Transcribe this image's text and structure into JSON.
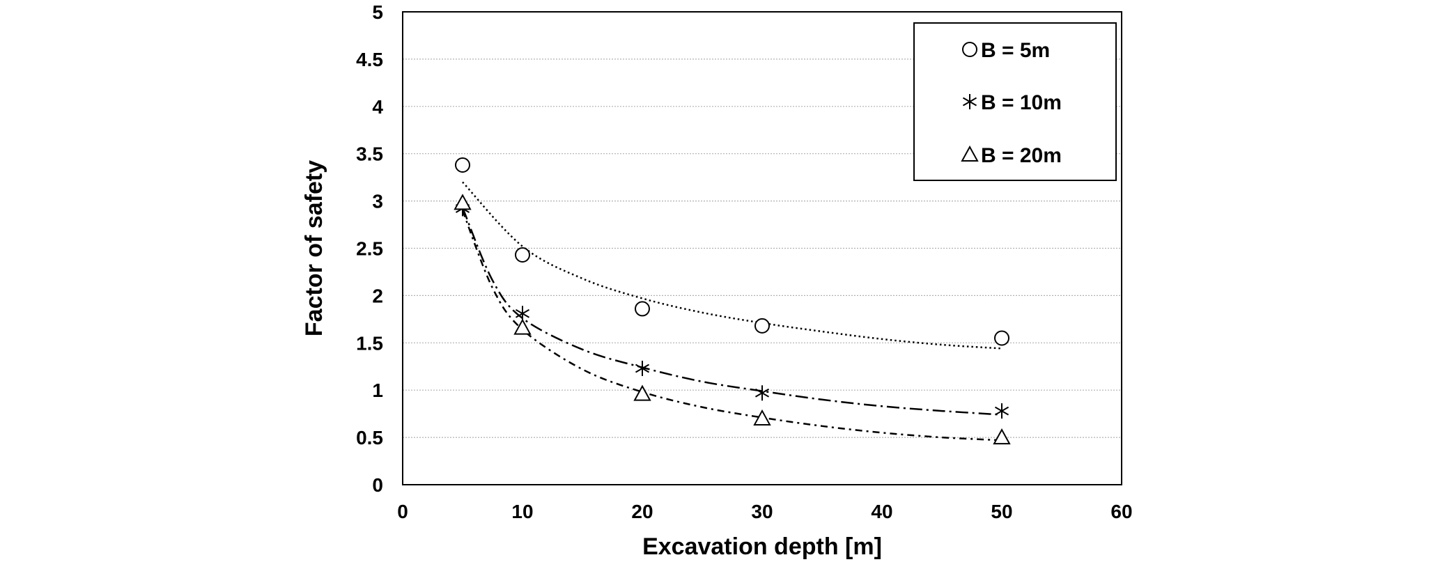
{
  "chart_data": {
    "type": "scatter",
    "title": "",
    "xlabel": "Excavation depth [m]",
    "ylabel": "Factor of safety",
    "xlim": [
      0,
      60
    ],
    "ylim": [
      0,
      5
    ],
    "x_ticks": [
      0,
      10,
      20,
      30,
      40,
      50,
      60
    ],
    "y_ticks": [
      0,
      0.5,
      1,
      1.5,
      2,
      2.5,
      3,
      3.5,
      4,
      4.5,
      5
    ],
    "x_tick_labels": [
      "0",
      "10",
      "20",
      "30",
      "40",
      "50",
      "60"
    ],
    "y_tick_labels": [
      "0",
      "0.5",
      "1",
      "1.5",
      "2",
      "2.5",
      "3",
      "3.5",
      "4",
      "4.5",
      "5"
    ],
    "grid": {
      "horizontal": true,
      "vertical": false
    },
    "legend_position": "top-right",
    "series": [
      {
        "name": "B = 5m",
        "marker": "circle",
        "trend_style": "dotted",
        "x": [
          5,
          10,
          20,
          30,
          50
        ],
        "y": [
          3.38,
          2.43,
          1.86,
          1.68,
          1.55
        ],
        "trend": {
          "x": [
            5,
            10,
            15,
            20,
            25,
            30,
            35,
            40,
            45,
            50
          ],
          "y": [
            3.2,
            2.52,
            2.18,
            1.97,
            1.82,
            1.71,
            1.62,
            1.54,
            1.48,
            1.44
          ]
        }
      },
      {
        "name": "B = 10m",
        "marker": "asterisk",
        "trend_style": "long-dash-dot",
        "x": [
          5,
          10,
          20,
          30,
          50
        ],
        "y": [
          2.92,
          1.81,
          1.23,
          0.97,
          0.78
        ],
        "trend": {
          "x": [
            5,
            7.5,
            10,
            15,
            20,
            25,
            30,
            35,
            40,
            45,
            50
          ],
          "y": [
            2.93,
            2.16,
            1.76,
            1.43,
            1.24,
            1.09,
            0.99,
            0.9,
            0.83,
            0.78,
            0.74
          ]
        }
      },
      {
        "name": "B = 20m",
        "marker": "triangle",
        "trend_style": "dash-dot",
        "x": [
          5,
          10,
          20,
          30,
          50
        ],
        "y": [
          2.98,
          1.66,
          0.96,
          0.7,
          0.5
        ],
        "trend": {
          "x": [
            5,
            7.5,
            10,
            15,
            20,
            25,
            30,
            35,
            40,
            45,
            50
          ],
          "y": [
            2.9,
            2.08,
            1.64,
            1.22,
            0.98,
            0.82,
            0.71,
            0.62,
            0.55,
            0.5,
            0.47
          ]
        }
      }
    ]
  }
}
